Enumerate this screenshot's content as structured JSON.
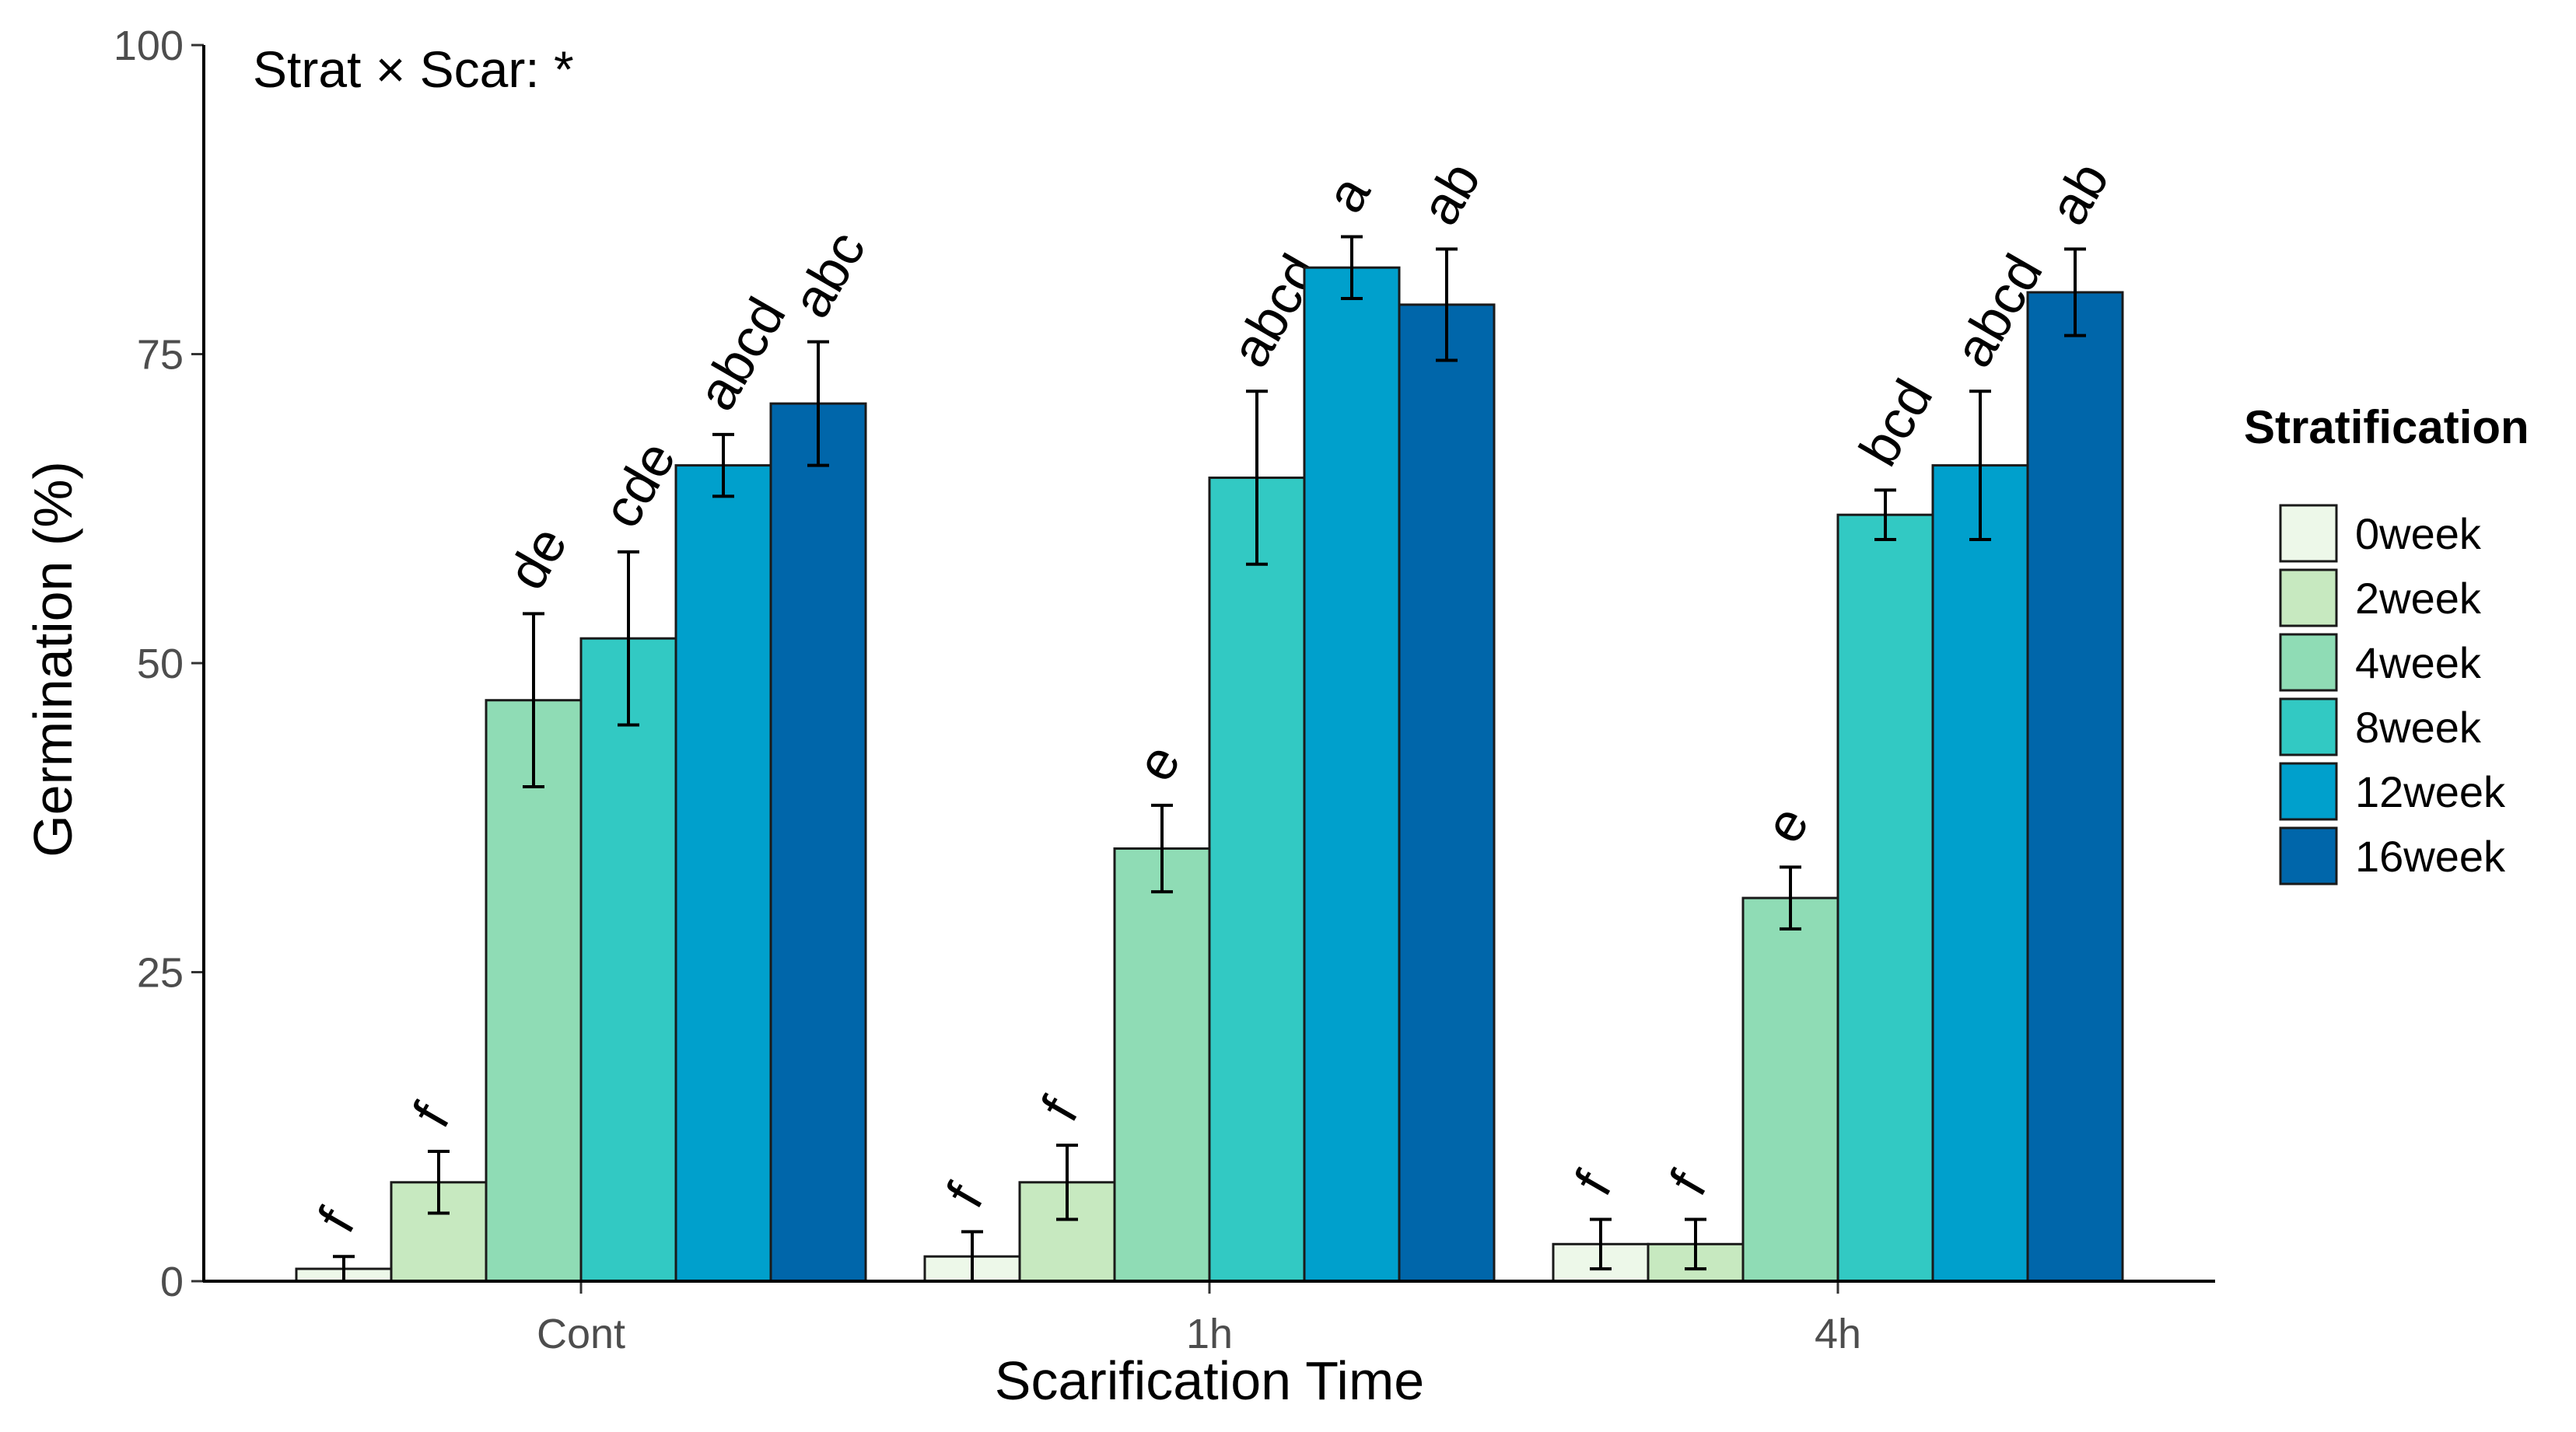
{
  "chart_data": {
    "type": "bar",
    "title": "",
    "annotation": "Strat × Scar: *",
    "xlabel": "Scarification Time",
    "ylabel": "Germination (%)",
    "ylim": [
      0,
      100
    ],
    "yticks": [
      0,
      25,
      50,
      75,
      100
    ],
    "categories": [
      "Cont",
      "1h",
      "4h"
    ],
    "legend": {
      "title": "Stratification",
      "position": "right"
    },
    "series": [
      {
        "name": "0week",
        "color": "#edf8e9",
        "values": [
          1,
          2,
          3
        ],
        "errors": [
          1,
          2,
          2
        ],
        "letters": [
          "f",
          "f",
          "f"
        ]
      },
      {
        "name": "2week",
        "color": "#c7e9c0",
        "values": [
          8,
          8,
          3
        ],
        "errors": [
          2.5,
          3,
          2
        ],
        "letters": [
          "f",
          "f",
          "f"
        ]
      },
      {
        "name": "4week",
        "color": "#8fdcb5",
        "values": [
          47,
          35,
          31
        ],
        "errors": [
          7,
          3.5,
          2.5
        ],
        "letters": [
          "de",
          "e",
          "e"
        ]
      },
      {
        "name": "8week",
        "color": "#32c9c3",
        "values": [
          52,
          65,
          62
        ],
        "errors": [
          7,
          7,
          2
        ],
        "letters": [
          "cde",
          "abcd",
          "bcd"
        ]
      },
      {
        "name": "12week",
        "color": "#00a0cc",
        "values": [
          66,
          82,
          66
        ],
        "errors": [
          2.5,
          2.5,
          6
        ],
        "letters": [
          "abcd",
          "a",
          "abcd"
        ]
      },
      {
        "name": "16week",
        "color": "#0066aa",
        "values": [
          71,
          79,
          80
        ],
        "errors": [
          5,
          4.5,
          3.5
        ],
        "letters": [
          "abc",
          "ab",
          "ab"
        ]
      }
    ]
  }
}
